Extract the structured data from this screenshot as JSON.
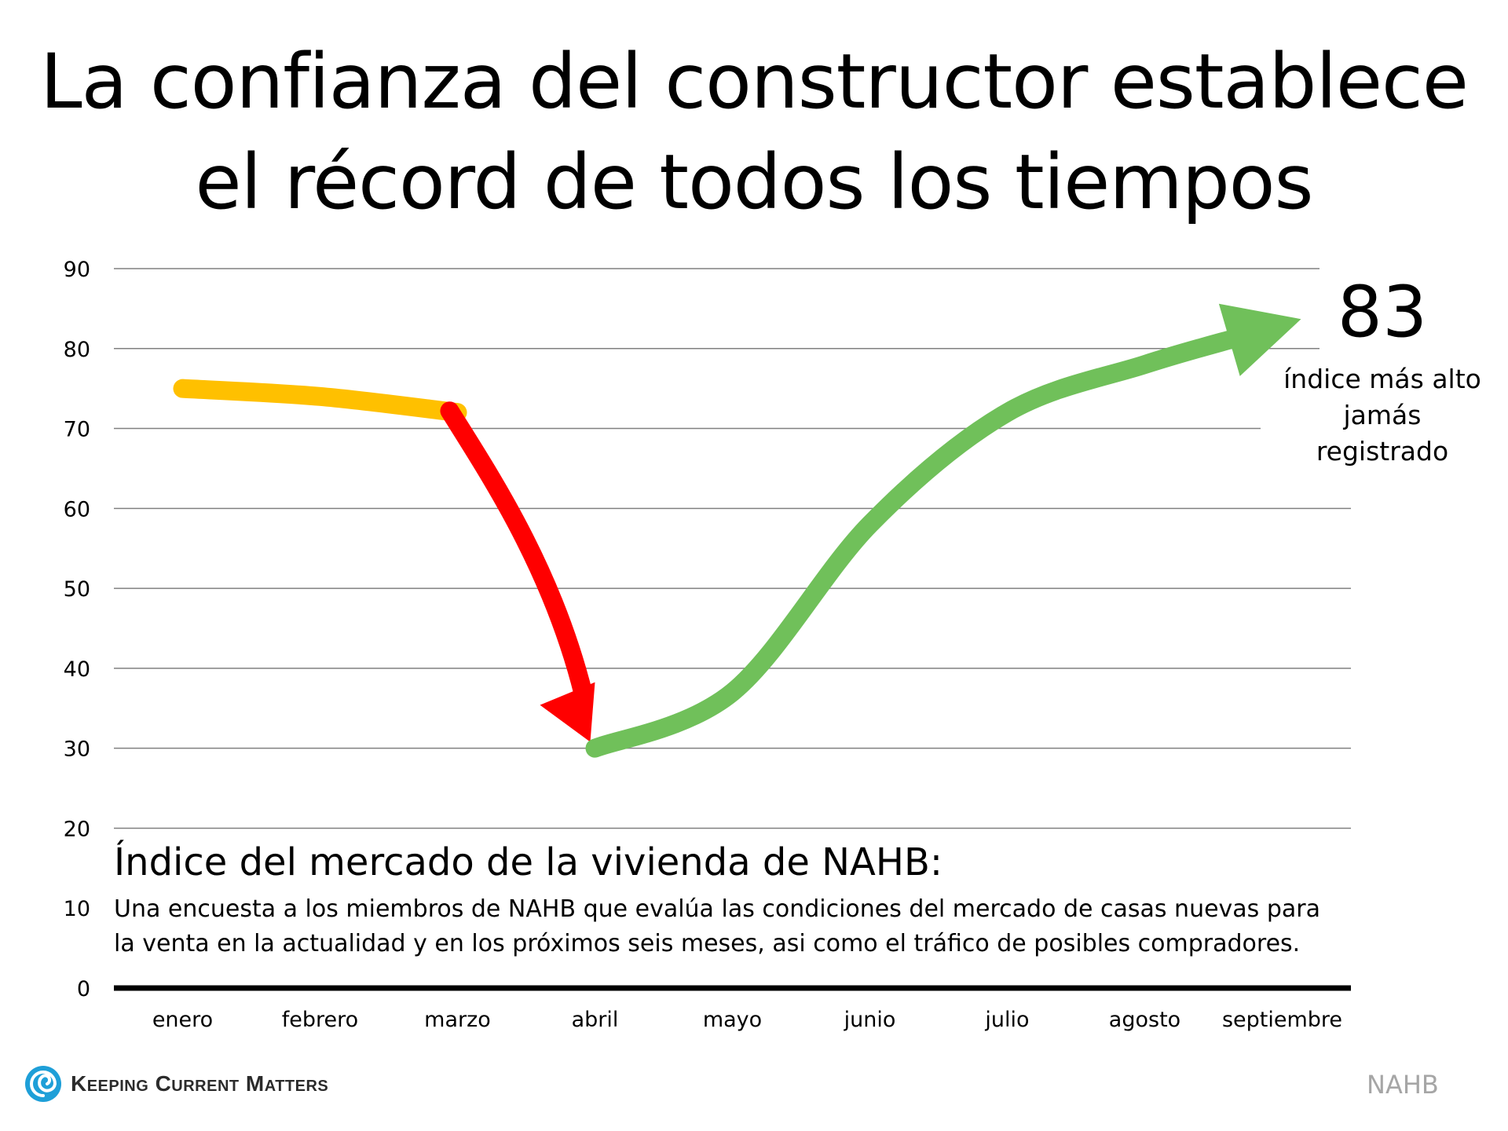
{
  "title_lines": [
    "La confianza del constructor establece",
    "el récord de todos los tiempos"
  ],
  "callout": {
    "value": "83",
    "text_lines": [
      "índice más alto",
      "jamás registrado"
    ]
  },
  "description": {
    "heading": "Índice del mercado de la vivienda de NAHB:",
    "body_lines": [
      "Una encuesta a los miembros de NAHB que evalúa las condiciones del mercado de casas nuevas para",
      "la venta en la actualidad y en los próximos seis meses, asi como el tráfico de posibles compradores."
    ]
  },
  "logo": {
    "text": "Keeping Current Matters",
    "icon": "swirl-logo-icon"
  },
  "source": "NAHB",
  "colors": {
    "stable": "#FFC000",
    "decline": "#FF0000",
    "recovery": "#70C05A",
    "grid": "#808080",
    "baseline": "#000000",
    "logo_blue": "#1E9FD8"
  },
  "chart_data": {
    "type": "line",
    "categories": [
      "enero",
      "febrero",
      "marzo",
      "abril",
      "mayo",
      "junio",
      "julio",
      "agosto",
      "septiembre"
    ],
    "y_ticks": [
      0,
      10,
      20,
      30,
      40,
      50,
      60,
      70,
      80,
      90
    ],
    "ylim": [
      0,
      90
    ],
    "grid": true,
    "values": [
      75,
      74,
      72,
      30,
      37,
      58,
      72,
      78,
      83
    ],
    "segments": [
      {
        "color_key": "stable",
        "from_index": 0,
        "to_index": 2
      },
      {
        "color_key": "decline",
        "from_index": 2,
        "to_index": 3
      },
      {
        "color_key": "recovery",
        "from_index": 3,
        "to_index": 8
      }
    ]
  }
}
